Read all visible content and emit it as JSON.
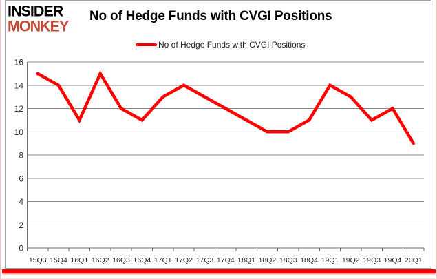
{
  "brand": {
    "line1": "INSIDER",
    "line2": "MONKEY"
  },
  "header": {
    "title": "No of Hedge Funds with CVGI Positions"
  },
  "legend": {
    "label": "No of Hedge Funds with CVGI Positions"
  },
  "chart_data": {
    "type": "line",
    "title": "No of Hedge Funds with CVGI Positions",
    "categories": [
      "15Q3",
      "15Q4",
      "16Q1",
      "16Q2",
      "16Q3",
      "16Q4",
      "17Q1",
      "17Q2",
      "17Q3",
      "17Q4",
      "18Q1",
      "18Q2",
      "18Q3",
      "18Q4",
      "19Q1",
      "19Q2",
      "19Q3",
      "19Q4",
      "20Q1"
    ],
    "series": [
      {
        "name": "No of Hedge Funds with CVGI Positions",
        "color": "#fe0000",
        "values": [
          15,
          14,
          11,
          15,
          12,
          11,
          13,
          14,
          13,
          12,
          11,
          10,
          10,
          11,
          14,
          13,
          11,
          12,
          9
        ]
      }
    ],
    "xlabel": "",
    "ylabel": "",
    "ylim": [
      0,
      16
    ],
    "y_ticks": [
      0,
      2,
      4,
      6,
      8,
      10,
      12,
      14,
      16
    ],
    "grid": true,
    "legend_position": "top-center"
  },
  "colors": {
    "grid": "#878787",
    "axis": "#6f6f6f",
    "tick_text": "#262626",
    "brand_red": "#c64a33",
    "accent_bar": "#ff0000",
    "card_border": "#a3a3a3",
    "outer_border": "#f2c3bd",
    "background": "#ffffff"
  }
}
